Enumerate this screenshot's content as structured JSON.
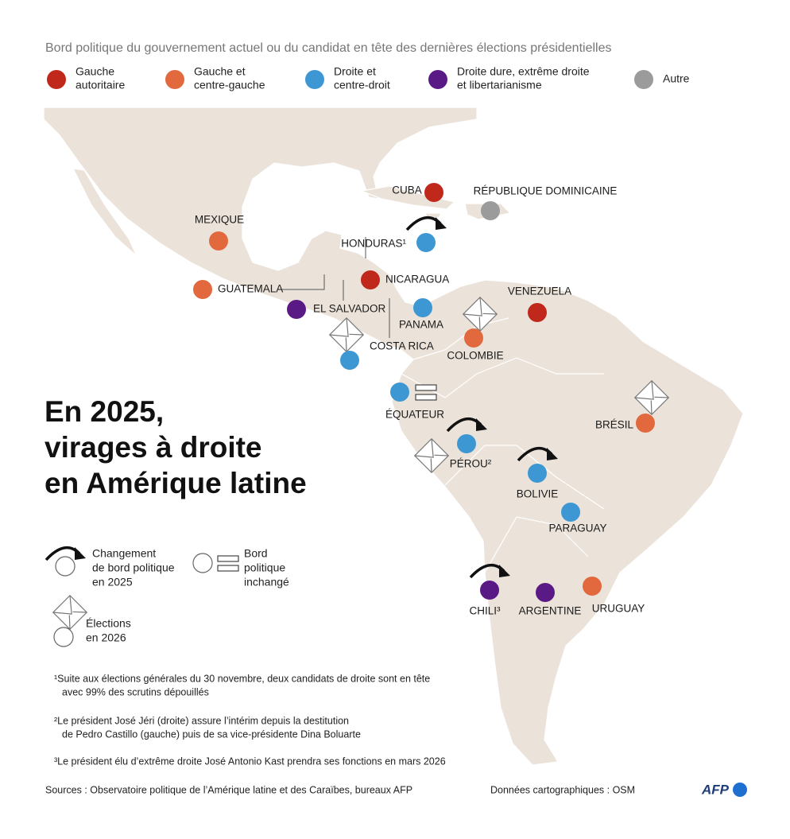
{
  "legend": {
    "title": "Bord politique du gouvernement actuel ou du candidat en tête des dernières élections présidentielles",
    "items": [
      {
        "label": [
          "Gauche",
          "autoritaire"
        ],
        "color": "#c0281b"
      },
      {
        "label": [
          "Gauche et",
          "centre-gauche"
        ],
        "color": "#e2683e"
      },
      {
        "label": [
          "Droite et",
          "centre-droit"
        ],
        "color": "#3d97d3"
      },
      {
        "label": [
          "Droite dure, extrême droite",
          "et libertarianisme"
        ],
        "color": "#5a1a86"
      },
      {
        "label": [
          "Autre"
        ],
        "color": "#9b9b9b"
      }
    ]
  },
  "title": [
    "En 2025,",
    "virages à droite",
    "en Amérique latine"
  ],
  "countries": [
    {
      "name": "CUBA",
      "group": 0
    },
    {
      "name": "RÉPUBLIQUE DOMINICAINE",
      "group": 4
    },
    {
      "name": "MEXIQUE",
      "group": 1
    },
    {
      "name": "HONDURAS¹",
      "group": 2,
      "change": true
    },
    {
      "name": "GUATEMALA",
      "group": 1
    },
    {
      "name": "NICARAGUA",
      "group": 0
    },
    {
      "name": "EL SALVADOR",
      "group": 3
    },
    {
      "name": "PANAMA",
      "group": 2
    },
    {
      "name": "COSTA RICA",
      "group": 2,
      "elections_2026": true
    },
    {
      "name": "COLOMBIE",
      "group": 1,
      "elections_2026": true
    },
    {
      "name": "VENEZUELA",
      "group": 0
    },
    {
      "name": "ÉQUATEUR",
      "group": 2,
      "unchanged": true
    },
    {
      "name": "BRÉSIL",
      "group": 1,
      "elections_2026": true
    },
    {
      "name": "PÉROU²",
      "group": 2,
      "change": true,
      "elections_2026": true
    },
    {
      "name": "BOLIVIE",
      "group": 2,
      "change": true
    },
    {
      "name": "PARAGUAY",
      "group": 2
    },
    {
      "name": "CHILI³",
      "group": 3,
      "change": true
    },
    {
      "name": "ARGENTINE",
      "group": 3
    },
    {
      "name": "URUGUAY",
      "group": 1
    }
  ],
  "key": {
    "change": [
      "Changement",
      "de bord politique",
      "en 2025"
    ],
    "unchanged": [
      "Bord",
      "politique",
      "inchangé"
    ],
    "elections": [
      "Élections",
      "en 2026"
    ]
  },
  "notes": [
    [
      "¹Suite aux élections générales du 30 novembre, deux candidats de droite sont en tête",
      "avec 99% des scrutins dépouillés"
    ],
    [
      "²Le président José Jéri (droite) assure l’intérim depuis la destitution",
      "de Pedro Castillo (gauche) puis de sa vice-présidente Dina Boluarte"
    ],
    [
      "³Le président élu d’extrême droite José Antonio Kast prendra ses fonctions en mars 2026"
    ]
  ],
  "sources": "Sources : Observatoire politique de l’Amérique latine et des Caraïbes, bureaux AFP",
  "map_credit": "Données cartographiques : OSM",
  "logo": "AFP"
}
